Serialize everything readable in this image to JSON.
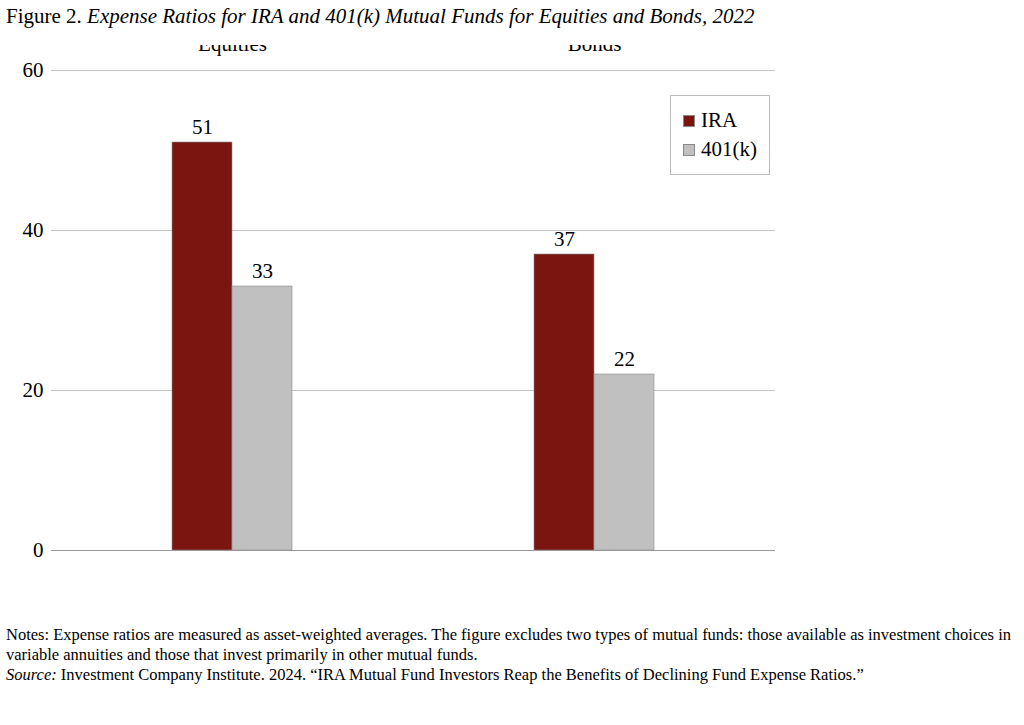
{
  "chart_data": {
    "type": "bar",
    "title": "Figure 2. Expense Ratios for IRA and 401(k) Mutual Funds for Equities and Bonds, 2022",
    "categories": [
      "Equities",
      "Bonds"
    ],
    "series": [
      {
        "name": "IRA",
        "color": "#7a1510",
        "values": [
          51,
          37
        ]
      },
      {
        "name": "401(k)",
        "color": "#c0c0c0",
        "values": [
          33,
          22
        ]
      }
    ],
    "ylim": [
      0,
      60
    ],
    "yticks": [
      0,
      20,
      40,
      60
    ],
    "grid": true,
    "legend": "top-right",
    "data_labels": true,
    "notes": "Notes: Expense ratios are measured as asset-weighted averages.  The figure excludes two types of mutual funds: those available as investment choices in variable annuities and those that invest primarily in other mutual funds.",
    "source": "Source: Investment Company Institute. 2024. “IRA Mutual Fund Investors Reap the Benefits of Declining Fund Expense Ratios.”"
  }
}
